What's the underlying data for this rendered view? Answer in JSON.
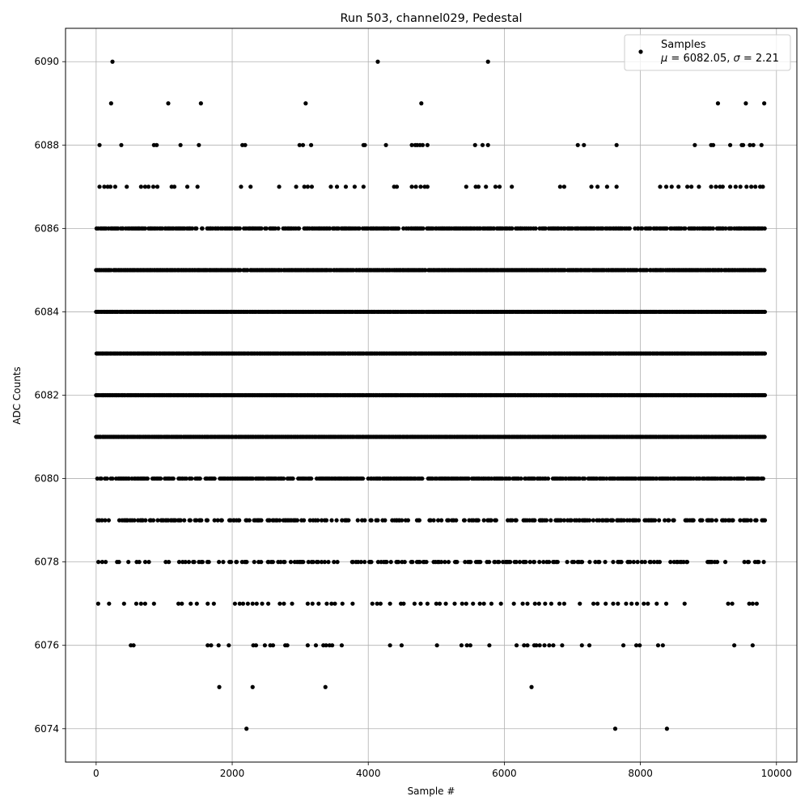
{
  "chart_data": {
    "type": "scatter",
    "title": "Run 503, channel029, Pedestal",
    "xlabel": "Sample #",
    "ylabel": "ADC Counts",
    "xlim": [
      -450,
      10300
    ],
    "ylim": [
      6073.2,
      6090.8
    ],
    "xticks": [
      0,
      2000,
      4000,
      6000,
      8000,
      10000
    ],
    "yticks": [
      6074,
      6076,
      6078,
      6080,
      6082,
      6084,
      6086,
      6088,
      6090
    ],
    "grid": true,
    "legend": {
      "placement": "top-right",
      "entries": [
        {
          "label": "Samples",
          "mu": "6082.05",
          "sigma": "2.21"
        }
      ]
    },
    "marker_color": "#000000",
    "n_samples": 9830,
    "series": [
      {
        "name": "Samples",
        "dense_levels": [
          6078,
          6079,
          6080,
          6081,
          6082,
          6083,
          6084,
          6085,
          6086
        ],
        "x_range": [
          0,
          9830
        ],
        "points": [
          [
            240,
            6090
          ],
          [
            4140,
            6090
          ],
          [
            5760,
            6090
          ],
          [
            220,
            6089
          ],
          [
            1060,
            6089
          ],
          [
            1540,
            6089
          ],
          [
            3080,
            6089
          ],
          [
            4780,
            6089
          ],
          [
            9140,
            6089
          ],
          [
            9550,
            6089
          ],
          [
            9820,
            6089
          ],
          [
            50,
            6088
          ],
          [
            370,
            6088
          ],
          [
            850,
            6088
          ],
          [
            890,
            6088
          ],
          [
            1240,
            6088
          ],
          [
            1510,
            6088
          ],
          [
            2150,
            6088
          ],
          [
            2190,
            6088
          ],
          [
            2990,
            6088
          ],
          [
            3040,
            6088
          ],
          [
            3160,
            6088
          ],
          [
            3930,
            6088
          ],
          [
            3950,
            6088
          ],
          [
            4260,
            6088
          ],
          [
            4640,
            6088
          ],
          [
            4690,
            6088
          ],
          [
            4720,
            6088
          ],
          [
            4760,
            6088
          ],
          [
            4800,
            6088
          ],
          [
            4870,
            6088
          ],
          [
            5570,
            6088
          ],
          [
            5680,
            6088
          ],
          [
            5760,
            6088
          ],
          [
            7080,
            6088
          ],
          [
            7170,
            6088
          ],
          [
            7650,
            6088
          ],
          [
            8800,
            6088
          ],
          [
            9040,
            6088
          ],
          [
            9070,
            6088
          ],
          [
            9320,
            6088
          ],
          [
            9490,
            6088
          ],
          [
            9510,
            6088
          ],
          [
            9610,
            6088
          ],
          [
            9660,
            6088
          ],
          [
            9780,
            6088
          ],
          [
            50,
            6087
          ],
          [
            120,
            6087
          ],
          [
            170,
            6087
          ],
          [
            210,
            6087
          ],
          [
            280,
            6087
          ],
          [
            450,
            6087
          ],
          [
            660,
            6087
          ],
          [
            720,
            6087
          ],
          [
            770,
            6087
          ],
          [
            840,
            6087
          ],
          [
            900,
            6087
          ],
          [
            1110,
            6087
          ],
          [
            1150,
            6087
          ],
          [
            1340,
            6087
          ],
          [
            1490,
            6087
          ],
          [
            2130,
            6087
          ],
          [
            2270,
            6087
          ],
          [
            2690,
            6087
          ],
          [
            2940,
            6087
          ],
          [
            3060,
            6087
          ],
          [
            3110,
            6087
          ],
          [
            3170,
            6087
          ],
          [
            3450,
            6087
          ],
          [
            3540,
            6087
          ],
          [
            3670,
            6087
          ],
          [
            3800,
            6087
          ],
          [
            3930,
            6087
          ],
          [
            4380,
            6087
          ],
          [
            4420,
            6087
          ],
          [
            4640,
            6087
          ],
          [
            4700,
            6087
          ],
          [
            4770,
            6087
          ],
          [
            4830,
            6087
          ],
          [
            4870,
            6087
          ],
          [
            5440,
            6087
          ],
          [
            5580,
            6087
          ],
          [
            5620,
            6087
          ],
          [
            5730,
            6087
          ],
          [
            5870,
            6087
          ],
          [
            5930,
            6087
          ],
          [
            6110,
            6087
          ],
          [
            6820,
            6087
          ],
          [
            6880,
            6087
          ],
          [
            7280,
            6087
          ],
          [
            7370,
            6087
          ],
          [
            7510,
            6087
          ],
          [
            7650,
            6087
          ],
          [
            8290,
            6087
          ],
          [
            8380,
            6087
          ],
          [
            8460,
            6087
          ],
          [
            8560,
            6087
          ],
          [
            8690,
            6087
          ],
          [
            8750,
            6087
          ],
          [
            8860,
            6087
          ],
          [
            9040,
            6087
          ],
          [
            9110,
            6087
          ],
          [
            9170,
            6087
          ],
          [
            9210,
            6087
          ],
          [
            9320,
            6087
          ],
          [
            9400,
            6087
          ],
          [
            9470,
            6087
          ],
          [
            9560,
            6087
          ],
          [
            9630,
            6087
          ],
          [
            9690,
            6087
          ],
          [
            9760,
            6087
          ],
          [
            9800,
            6087
          ],
          [
            30,
            6077
          ],
          [
            190,
            6077
          ],
          [
            410,
            6077
          ],
          [
            590,
            6077
          ],
          [
            660,
            6077
          ],
          [
            720,
            6077
          ],
          [
            850,
            6077
          ],
          [
            1210,
            6077
          ],
          [
            1260,
            6077
          ],
          [
            1390,
            6077
          ],
          [
            1480,
            6077
          ],
          [
            1640,
            6077
          ],
          [
            1730,
            6077
          ],
          [
            2040,
            6077
          ],
          [
            2110,
            6077
          ],
          [
            2160,
            6077
          ],
          [
            2230,
            6077
          ],
          [
            2300,
            6077
          ],
          [
            2360,
            6077
          ],
          [
            2440,
            6077
          ],
          [
            2530,
            6077
          ],
          [
            2700,
            6077
          ],
          [
            2760,
            6077
          ],
          [
            2880,
            6077
          ],
          [
            3110,
            6077
          ],
          [
            3180,
            6077
          ],
          [
            3270,
            6077
          ],
          [
            3390,
            6077
          ],
          [
            3460,
            6077
          ],
          [
            3510,
            6077
          ],
          [
            3620,
            6077
          ],
          [
            3770,
            6077
          ],
          [
            4060,
            6077
          ],
          [
            4130,
            6077
          ],
          [
            4180,
            6077
          ],
          [
            4320,
            6077
          ],
          [
            4480,
            6077
          ],
          [
            4520,
            6077
          ],
          [
            4680,
            6077
          ],
          [
            4770,
            6077
          ],
          [
            4870,
            6077
          ],
          [
            5000,
            6077
          ],
          [
            5050,
            6077
          ],
          [
            5140,
            6077
          ],
          [
            5270,
            6077
          ],
          [
            5380,
            6077
          ],
          [
            5440,
            6077
          ],
          [
            5540,
            6077
          ],
          [
            5640,
            6077
          ],
          [
            5700,
            6077
          ],
          [
            5810,
            6077
          ],
          [
            5950,
            6077
          ],
          [
            6140,
            6077
          ],
          [
            6270,
            6077
          ],
          [
            6340,
            6077
          ],
          [
            6450,
            6077
          ],
          [
            6510,
            6077
          ],
          [
            6600,
            6077
          ],
          [
            6690,
            6077
          ],
          [
            6810,
            6077
          ],
          [
            6880,
            6077
          ],
          [
            7110,
            6077
          ],
          [
            7310,
            6077
          ],
          [
            7370,
            6077
          ],
          [
            7490,
            6077
          ],
          [
            7600,
            6077
          ],
          [
            7670,
            6077
          ],
          [
            7790,
            6077
          ],
          [
            7870,
            6077
          ],
          [
            7950,
            6077
          ],
          [
            8050,
            6077
          ],
          [
            8110,
            6077
          ],
          [
            8240,
            6077
          ],
          [
            8380,
            6077
          ],
          [
            8650,
            6077
          ],
          [
            9290,
            6077
          ],
          [
            9350,
            6077
          ],
          [
            9600,
            6077
          ],
          [
            9650,
            6077
          ],
          [
            9710,
            6077
          ],
          [
            510,
            6076
          ],
          [
            550,
            6076
          ],
          [
            1640,
            6076
          ],
          [
            1690,
            6076
          ],
          [
            1800,
            6076
          ],
          [
            1950,
            6076
          ],
          [
            2310,
            6076
          ],
          [
            2350,
            6076
          ],
          [
            2480,
            6076
          ],
          [
            2560,
            6076
          ],
          [
            2600,
            6076
          ],
          [
            2780,
            6076
          ],
          [
            2810,
            6076
          ],
          [
            3110,
            6076
          ],
          [
            3230,
            6076
          ],
          [
            3340,
            6076
          ],
          [
            3380,
            6076
          ],
          [
            3430,
            6076
          ],
          [
            3470,
            6076
          ],
          [
            3610,
            6076
          ],
          [
            4320,
            6076
          ],
          [
            4490,
            6076
          ],
          [
            5010,
            6076
          ],
          [
            5370,
            6076
          ],
          [
            5450,
            6076
          ],
          [
            5500,
            6076
          ],
          [
            5780,
            6076
          ],
          [
            6180,
            6076
          ],
          [
            6290,
            6076
          ],
          [
            6340,
            6076
          ],
          [
            6440,
            6076
          ],
          [
            6470,
            6076
          ],
          [
            6520,
            6076
          ],
          [
            6590,
            6076
          ],
          [
            6660,
            6076
          ],
          [
            6720,
            6076
          ],
          [
            6850,
            6076
          ],
          [
            7140,
            6076
          ],
          [
            7250,
            6076
          ],
          [
            7750,
            6076
          ],
          [
            7940,
            6076
          ],
          [
            7990,
            6076
          ],
          [
            8260,
            6076
          ],
          [
            8330,
            6076
          ],
          [
            9380,
            6076
          ],
          [
            9650,
            6076
          ],
          [
            1810,
            6075
          ],
          [
            2300,
            6075
          ],
          [
            3370,
            6075
          ],
          [
            6400,
            6075
          ],
          [
            2210,
            6074
          ],
          [
            7630,
            6074
          ],
          [
            8390,
            6074
          ]
        ]
      }
    ]
  }
}
